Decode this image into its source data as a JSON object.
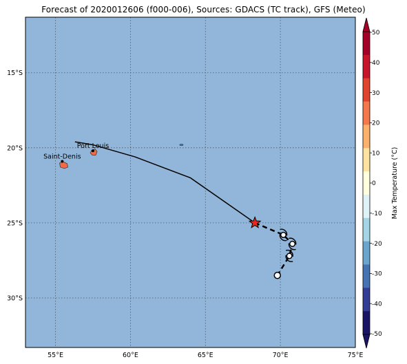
{
  "title": "Forecast of 2020012606 (f000-006), Sources: GDACS (TC track), GFS (Meteo)",
  "map": {
    "lon_range": [
      53,
      75
    ],
    "lat_range": [
      -33.3,
      -11.3
    ],
    "ocean_color": "#92b6d9",
    "grid": "dotted",
    "lon_ticks": [
      {
        "value": 55,
        "label": "55°E"
      },
      {
        "value": 60,
        "label": "60°E"
      },
      {
        "value": 65,
        "label": "65°E"
      },
      {
        "value": 70,
        "label": "70°E"
      },
      {
        "value": 75,
        "label": "75°E"
      }
    ],
    "lat_ticks": [
      {
        "value": -15,
        "label": "15°S"
      },
      {
        "value": -20,
        "label": "20°S"
      },
      {
        "value": -25,
        "label": "25°S"
      },
      {
        "value": -30,
        "label": "30°S"
      }
    ],
    "cities": [
      {
        "name": "Port Louis",
        "lon": 57.5,
        "lat": -20.2
      },
      {
        "name": "Saint-Denis",
        "lon": 55.45,
        "lat": -20.9
      }
    ],
    "islands": [
      {
        "name": "Mauritius",
        "lon": 57.55,
        "lat": -20.3,
        "color": "#ef6a45"
      },
      {
        "name": "Reunion",
        "lon": 55.55,
        "lat": -21.15,
        "color": "#ef6a45"
      },
      {
        "name": "Tromelin",
        "lon": 63.4,
        "lat": -19.8,
        "color": "#5a86b8"
      }
    ],
    "past_track": [
      [
        56.3,
        -19.6
      ],
      [
        57.5,
        -19.8
      ],
      [
        60.3,
        -20.6
      ],
      [
        64.0,
        -22.0
      ],
      [
        68.3,
        -25.0
      ]
    ],
    "current_position": {
      "lon": 68.3,
      "lat": -25.0,
      "color": "#e8261d"
    },
    "forecast_track": [
      [
        68.3,
        -25.0
      ],
      [
        70.2,
        -25.8
      ],
      [
        70.8,
        -26.4
      ],
      [
        70.6,
        -27.2
      ],
      [
        69.8,
        -28.5
      ]
    ],
    "forecast_points": [
      {
        "lon": 70.2,
        "lat": -25.8,
        "symbol": true
      },
      {
        "lon": 70.8,
        "lat": -26.4,
        "symbol": true
      },
      {
        "lon": 70.6,
        "lat": -27.2,
        "symbol": true
      },
      {
        "lon": 69.8,
        "lat": -28.5,
        "symbol": false
      }
    ]
  },
  "colorbar": {
    "label": "Max Temperature (°C)",
    "ticks": [
      50,
      40,
      30,
      20,
      10,
      0,
      -10,
      -20,
      -30,
      -40,
      -50
    ],
    "colors": [
      "#a50026",
      "#c8152a",
      "#e0442d",
      "#f3794c",
      "#fbb06b",
      "#fee2a0",
      "#ffffe0",
      "#def2f8",
      "#a4d5e7",
      "#6aa5cd",
      "#4673b4",
      "#333d96",
      "#1a1466"
    ],
    "extend_top_color": "#a50026",
    "extend_bottom_color": "#1a1466"
  }
}
